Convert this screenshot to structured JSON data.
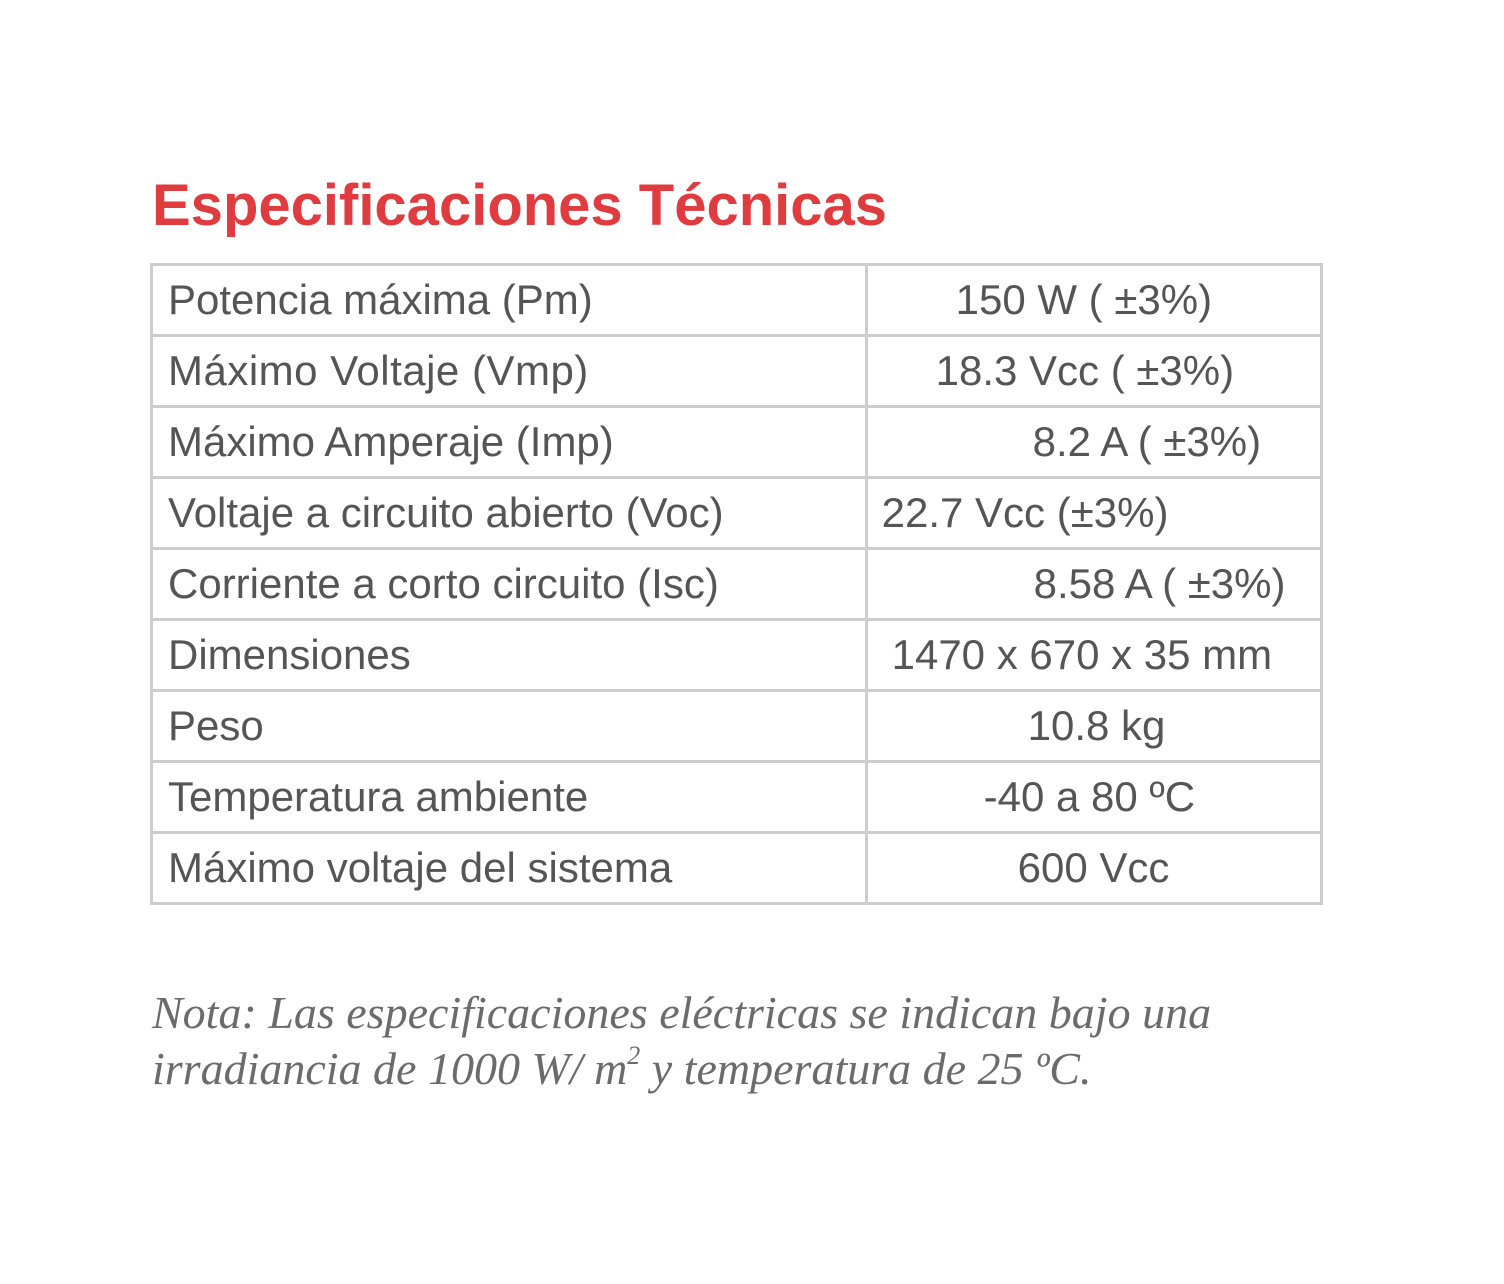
{
  "title": "Especificaciones Técnicas",
  "specs": [
    {
      "label": "Potencia máxima (Pm)",
      "value": "150 W ( ±3%)"
    },
    {
      "label": "Máximo Voltaje (Vmp)",
      "value": "18.3 Vcc ( ±3%)"
    },
    {
      "label": "Máximo Amperaje (Imp)",
      "value": "8.2 A ( ±3%)"
    },
    {
      "label": "Voltaje a circuito abierto (Voc)",
      "value": "22.7 Vcc (±3%)"
    },
    {
      "label": "Corriente a corto circuito (Isc)",
      "value": "8.58 A ( ±3%)"
    },
    {
      "label": "Dimensiones",
      "value": "1470 x 670 x 35 mm"
    },
    {
      "label": "Peso",
      "value": "10.8 kg"
    },
    {
      "label": "Temperatura ambiente",
      "value": "-40 a 80 ºC"
    },
    {
      "label": "Máximo voltaje del sistema",
      "value": "600 Vcc"
    }
  ],
  "note": {
    "line1": "Nota: Las especificaciones eléctricas se indican bajo una",
    "line2_prefix": "irradiancia de 1000 W/ m",
    "superscript": "2",
    "line2_suffix": " y temperatura de 25 ºC."
  },
  "colors": {
    "title": "#e03c40",
    "text": "#555555",
    "border": "#cdcdcd",
    "note": "#6b6b6b"
  }
}
